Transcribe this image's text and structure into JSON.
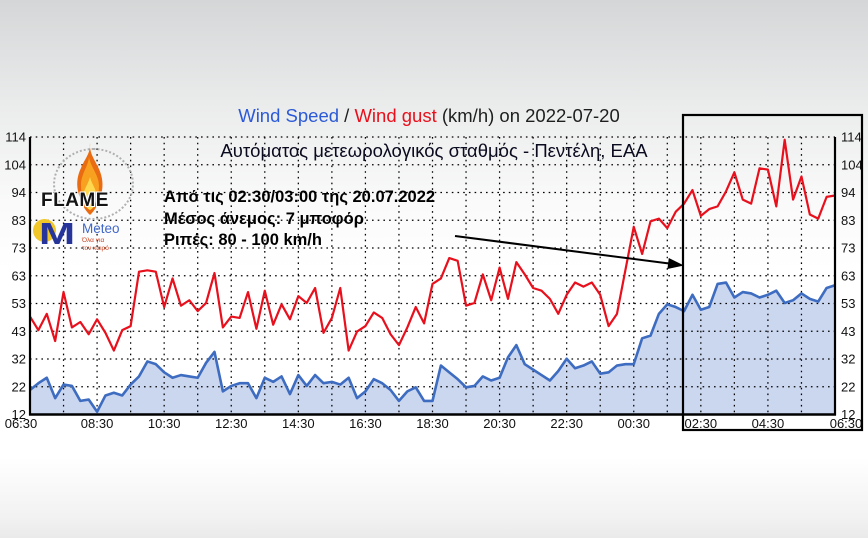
{
  "title": {
    "speed": "Wind Speed",
    "sep": " / ",
    "gust": "Wind gust",
    "suffix": " (km/h) on 2022-07-20"
  },
  "station_subtitle": "Αυτόματος μετεωρολογικός σταθμός - Πεντέλη, ΕΑΑ",
  "annotation": {
    "line1": "Από τις 02:30/03:00 της 20.07.2022",
    "line2": "Μέσος άνεμος: 7 μποφόρ",
    "line3": "Ριπές: 80 - 100 km/h"
  },
  "logos": {
    "flame_label": "FLAME",
    "meteo_label": "Meteo",
    "meteo_sub1": "Όλα για",
    "meteo_sub2": "τον καιρό"
  },
  "colors": {
    "gust_line": "#e8101c",
    "speed_line": "#3d6cc0",
    "speed_area": "#cbd6ef",
    "axis": "#000000",
    "grid": "#000000",
    "tick_text": "#111111"
  },
  "chart_data": {
    "type": "line",
    "title": "Wind Speed / Wind gust (km/h) on 2022-07-20",
    "x_axis": {
      "start": "06:30",
      "end": "06:30 (+1 day)",
      "sample_interval_min": 15,
      "tick_labels": [
        "06:30",
        "08:30",
        "10:30",
        "12:30",
        "14:30",
        "16:30",
        "18:30",
        "20:30",
        "22:30",
        "00:30",
        "02:30",
        "04:30",
        "06:30"
      ]
    },
    "y_axis": {
      "tick_labels": [
        "114",
        "104",
        "94",
        "83",
        "73",
        "63",
        "53",
        "43",
        "32",
        "22",
        "12"
      ]
    },
    "ylim": [
      12,
      114
    ],
    "grid": "dotted, hourly vertical, 10 horizontal divisions",
    "highlight_box": {
      "from": "02:00",
      "to": "06:30"
    },
    "series": [
      {
        "name": "Wind Speed",
        "color": "#3d6cc0",
        "area": true,
        "values": [
          21,
          23.5,
          25.5,
          18,
          23,
          22.5,
          17,
          17.5,
          13,
          19,
          20,
          19,
          23,
          26,
          31.5,
          30.5,
          27.5,
          25.5,
          26.5,
          26,
          25.5,
          31,
          35,
          20.5,
          22.5,
          23.5,
          23.5,
          18,
          25.5,
          24,
          26,
          19.5,
          26.5,
          22.5,
          26.5,
          23.5,
          24,
          23,
          25.5,
          18,
          20.5,
          25,
          23.5,
          21,
          17,
          20.5,
          22,
          17,
          17,
          30,
          27.5,
          25,
          22,
          22.5,
          26,
          24.5,
          25.5,
          33,
          37.5,
          30.5,
          28.5,
          26.5,
          24.5,
          28,
          32.5,
          29,
          30,
          31.5,
          27,
          27.5,
          30,
          30.5,
          30.5,
          40,
          41,
          49,
          52.5,
          51.5,
          50,
          56,
          50.5,
          51.5,
          60,
          60.5,
          55,
          57,
          56.5,
          55,
          56,
          57.5,
          53,
          54,
          56.5,
          54.5,
          53.5,
          58.5,
          59.5
        ]
      },
      {
        "name": "Wind gust",
        "color": "#e8101c",
        "area": false,
        "values": [
          48,
          43,
          49,
          39,
          57,
          44,
          46,
          41.5,
          47,
          42,
          35.5,
          43,
          44.5,
          64.5,
          65,
          64.5,
          51.5,
          62,
          52,
          54,
          50,
          53,
          64,
          44,
          48,
          47.5,
          57,
          43.5,
          57.5,
          45,
          52.5,
          47,
          55.5,
          53,
          58.5,
          42,
          47.5,
          58.5,
          35.5,
          42.5,
          44.5,
          49.5,
          47.5,
          41.5,
          37.5,
          44,
          51.5,
          45.5,
          60,
          62,
          69.5,
          68.5,
          52,
          53,
          63.5,
          54,
          66,
          54.5,
          68,
          63.5,
          58.5,
          57.5,
          54.5,
          49,
          56,
          60.5,
          59,
          60.5,
          56,
          44.5,
          49,
          65,
          81,
          71,
          83,
          84,
          80.5,
          86.5,
          89.5,
          94.5,
          85,
          87.5,
          88.5,
          94,
          101,
          91,
          89.5,
          102.5,
          102,
          88.5,
          113,
          91,
          99.5,
          85.5,
          84,
          92,
          92.5
        ]
      }
    ]
  }
}
